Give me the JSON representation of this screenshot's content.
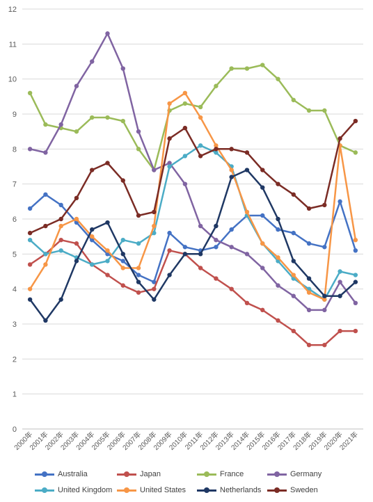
{
  "chart_data": {
    "type": "line",
    "x": [
      "2000年",
      "2001年",
      "2002年",
      "2003年",
      "2004年",
      "2005年",
      "2006年",
      "2007年",
      "2008年",
      "2009年",
      "2010年",
      "2011年",
      "2012年",
      "2013年",
      "2014年",
      "2015年",
      "2016年",
      "2017年",
      "2018年",
      "2019年",
      "2020年",
      "2021年"
    ],
    "ylim": [
      0,
      12
    ],
    "yticks": [
      0,
      1,
      2,
      3,
      4,
      5,
      6,
      7,
      8,
      9,
      10,
      11,
      12
    ],
    "grid": true,
    "legend_position": "bottom",
    "series": [
      {
        "name": "Australia",
        "color": "#4472c4",
        "values": [
          6.3,
          6.7,
          6.4,
          5.9,
          5.4,
          5.0,
          4.8,
          4.4,
          4.2,
          5.6,
          5.2,
          5.1,
          5.2,
          5.7,
          6.1,
          6.1,
          5.7,
          5.6,
          5.3,
          5.2,
          6.5,
          5.1
        ]
      },
      {
        "name": "Japan",
        "color": "#c0504d",
        "values": [
          4.7,
          5.0,
          5.4,
          5.3,
          4.7,
          4.4,
          4.1,
          3.9,
          4.0,
          5.1,
          5.0,
          4.6,
          4.3,
          4.0,
          3.6,
          3.4,
          3.1,
          2.8,
          2.4,
          2.4,
          2.8,
          2.8
        ]
      },
      {
        "name": "France",
        "color": "#9bbb59",
        "values": [
          9.6,
          8.7,
          8.6,
          8.5,
          8.9,
          8.9,
          8.8,
          8.0,
          7.4,
          9.1,
          9.3,
          9.2,
          9.8,
          10.3,
          10.3,
          10.4,
          10.0,
          9.4,
          9.1,
          9.1,
          8.1,
          7.9
        ]
      },
      {
        "name": "Germany",
        "color": "#8064a2",
        "values": [
          8.0,
          7.9,
          8.7,
          9.8,
          10.5,
          11.3,
          10.3,
          8.5,
          7.4,
          7.6,
          7.0,
          5.8,
          5.4,
          5.2,
          5.0,
          4.6,
          4.1,
          3.8,
          3.4,
          3.4,
          4.2,
          3.6
        ]
      },
      {
        "name": "United Kingdom",
        "color": "#4bacc6",
        "values": [
          5.4,
          5.0,
          5.1,
          4.9,
          4.7,
          4.8,
          5.4,
          5.3,
          5.6,
          7.5,
          7.8,
          8.1,
          7.9,
          7.5,
          6.1,
          5.3,
          4.8,
          4.3,
          4.0,
          3.7,
          4.5,
          4.4
        ]
      },
      {
        "name": "United States",
        "color": "#f79646",
        "values": [
          4.0,
          4.7,
          5.8,
          6.0,
          5.5,
          5.1,
          4.6,
          4.6,
          5.8,
          9.3,
          9.6,
          8.9,
          8.1,
          7.4,
          6.2,
          5.3,
          4.9,
          4.4,
          3.9,
          3.7,
          8.1,
          5.4
        ]
      },
      {
        "name": "Netherlands",
        "color": "#1f3864",
        "values": [
          3.7,
          3.1,
          3.7,
          4.8,
          5.7,
          5.9,
          5.0,
          4.2,
          3.7,
          4.4,
          5.0,
          5.0,
          5.8,
          7.2,
          7.4,
          6.9,
          6.0,
          4.8,
          4.3,
          3.8,
          3.8,
          4.2
        ]
      },
      {
        "name": "Sweden",
        "color": "#7b2c25",
        "values": [
          5.6,
          5.8,
          6.0,
          6.6,
          7.4,
          7.6,
          7.1,
          6.1,
          6.2,
          8.3,
          8.6,
          7.8,
          8.0,
          8.0,
          7.9,
          7.4,
          7.0,
          6.7,
          6.3,
          6.4,
          8.3,
          8.8
        ]
      }
    ]
  }
}
